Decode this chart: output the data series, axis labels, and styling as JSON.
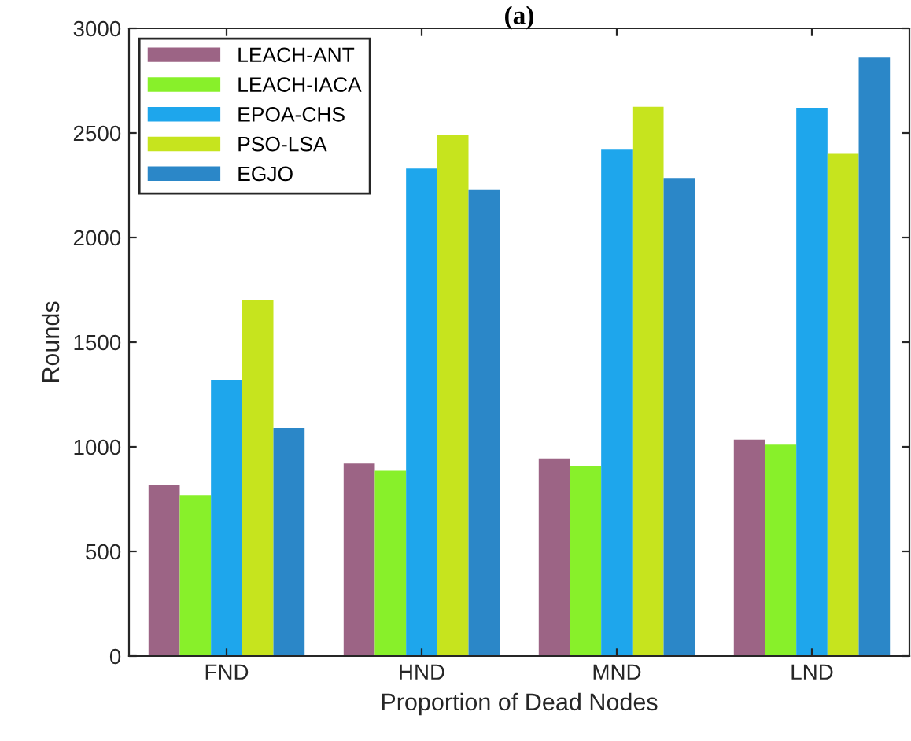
{
  "chart_data": {
    "type": "bar",
    "title": "(a)",
    "xlabel": "Proportion of Dead Nodes",
    "ylabel": "Rounds",
    "categories": [
      "FND",
      "HND",
      "MND",
      "LND"
    ],
    "series": [
      {
        "name": "LEACH-ANT",
        "color": "#9c6485",
        "values": [
          820,
          920,
          945,
          1035
        ]
      },
      {
        "name": "LEACH-IACA",
        "color": "#88f02a",
        "values": [
          770,
          885,
          910,
          1010
        ]
      },
      {
        "name": "EPOA-CHS",
        "color": "#1ea6ec",
        "values": [
          1320,
          2330,
          2420,
          2620
        ]
      },
      {
        "name": "PSO-LSA",
        "color": "#c6e41e",
        "values": [
          1700,
          2490,
          2625,
          2400
        ]
      },
      {
        "name": "EGJO",
        "color": "#2b87c8",
        "values": [
          1090,
          2230,
          2285,
          2860
        ]
      }
    ],
    "ylim": [
      0,
      3000
    ],
    "yticks": [
      0,
      500,
      1000,
      1500,
      2000,
      2500,
      3000
    ],
    "legend": "top left",
    "grid": false
  }
}
